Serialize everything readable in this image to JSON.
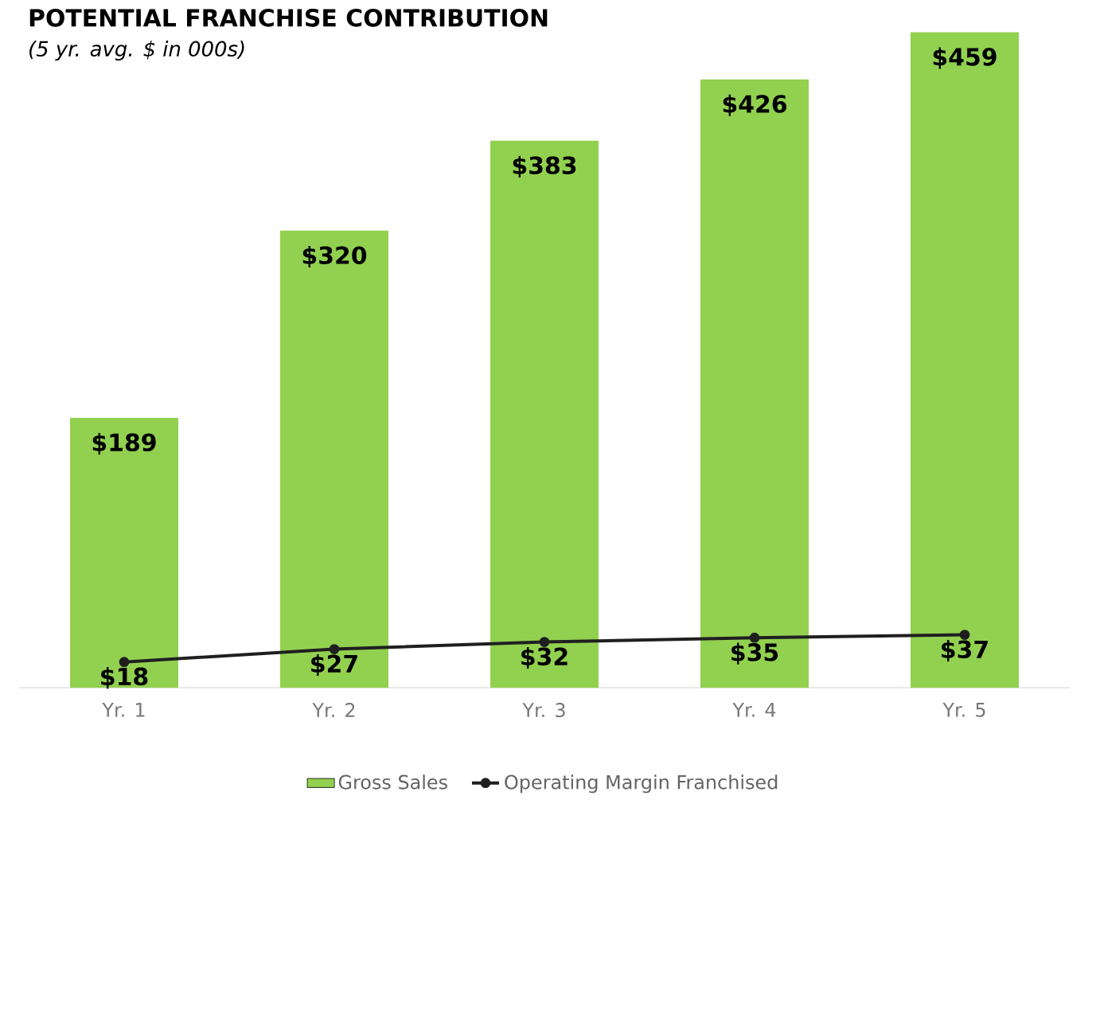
{
  "chart_data": {
    "type": "bar",
    "title": "POTENTIAL FRANCHISE CONTRIBUTION",
    "subtitle": "(5 yr. avg. $ in 000s)",
    "categories": [
      "Yr. 1",
      "Yr. 2",
      "Yr. 3",
      "Yr. 4",
      "Yr. 5"
    ],
    "series": [
      {
        "name": "Gross Sales",
        "color": "#92d050",
        "values": [
          189,
          320,
          383,
          426,
          459
        ],
        "value_labels": [
          "$189",
          "$320",
          "$383",
          "$426",
          "$459"
        ]
      },
      {
        "name": "Operating Margin Franchised",
        "type": "line",
        "color": "#1f1f1f",
        "marker": "circle",
        "line_style": "solid",
        "values": [
          18,
          27,
          32,
          35,
          37
        ],
        "value_labels": [
          "$18",
          "$27",
          "$32",
          "$35",
          "$37"
        ]
      }
    ],
    "legend": "bottom"
  }
}
